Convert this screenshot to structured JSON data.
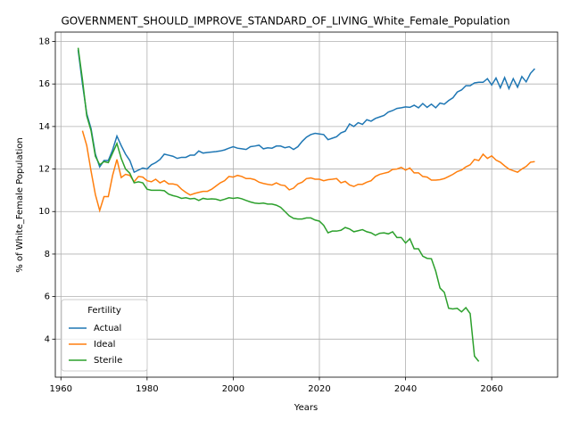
{
  "chart_data": {
    "type": "line",
    "title": "GOVERNMENT_SHOULD_IMPROVE_STANDARD_OF_LIVING_White_Female_Population",
    "xlabel": "Years",
    "ylabel": "% of White_Female Population",
    "legend_title": "Fertility",
    "legend": "lower left",
    "grid": true,
    "xlim": [
      1958.7,
      2075.3
    ],
    "xticks": [
      1960,
      1980,
      2000,
      2020,
      2040,
      2060
    ],
    "ylim": [
      2.21,
      18.44
    ],
    "yticks": [
      4,
      6,
      8,
      10,
      12,
      14,
      16,
      18
    ],
    "x": [
      1964,
      1965,
      1966,
      1967,
      1968,
      1969,
      1970,
      1971,
      1972,
      1973,
      1974,
      1975,
      1976,
      1977,
      1978,
      1979,
      1980,
      1981,
      1982,
      1983,
      1984,
      1985,
      1986,
      1987,
      1988,
      1989,
      1990,
      1991,
      1992,
      1993,
      1994,
      1995,
      1996,
      1997,
      1998,
      1999,
      2000,
      2001,
      2002,
      2003,
      2004,
      2005,
      2006,
      2007,
      2008,
      2009,
      2010,
      2011,
      2012,
      2013,
      2014,
      2015,
      2016,
      2017,
      2018,
      2019,
      2020,
      2021,
      2022,
      2023,
      2024,
      2025,
      2026,
      2027,
      2028,
      2029,
      2030,
      2031,
      2032,
      2033,
      2034,
      2035,
      2036,
      2037,
      2038,
      2039,
      2040,
      2041,
      2042,
      2043,
      2044,
      2045,
      2046,
      2047,
      2048,
      2049,
      2050,
      2051,
      2052,
      2053,
      2054,
      2055,
      2056,
      2057,
      2058,
      2059,
      2060,
      2061,
      2062,
      2063,
      2064,
      2065,
      2066,
      2067,
      2068,
      2069,
      2070
    ],
    "series": [
      {
        "name": "Actual",
        "color": "#1f77b4",
        "values": [
          17.6,
          16.0,
          14.6,
          13.9,
          12.7,
          12.1,
          12.4,
          12.4,
          12.9,
          13.55,
          13.1,
          12.7,
          12.4,
          11.85,
          11.95,
          12.05,
          12.0,
          12.2,
          12.3,
          12.45,
          12.7,
          12.65,
          12.6,
          12.5,
          12.55,
          12.55,
          12.65,
          12.65,
          12.85,
          12.75,
          12.78,
          12.8,
          12.82,
          12.85,
          12.9,
          12.98,
          13.05,
          12.98,
          12.95,
          12.92,
          13.05,
          13.08,
          13.12,
          12.95,
          13.0,
          12.98,
          13.08,
          13.08,
          13.0,
          13.05,
          12.92,
          13.05,
          13.3,
          13.5,
          13.62,
          13.68,
          13.65,
          13.62,
          13.38,
          13.45,
          13.52,
          13.7,
          13.78,
          14.12,
          14.0,
          14.18,
          14.1,
          14.32,
          14.25,
          14.38,
          14.45,
          14.52,
          14.68,
          14.75,
          14.85,
          14.88,
          14.92,
          14.9,
          15.0,
          14.88,
          15.08,
          14.9,
          15.05,
          14.88,
          15.1,
          15.05,
          15.22,
          15.35,
          15.62,
          15.72,
          15.92,
          15.92,
          16.05,
          16.08,
          16.08,
          16.25,
          15.95,
          16.28,
          15.82,
          16.3,
          15.78,
          16.25,
          15.85,
          16.35,
          16.1,
          16.5,
          16.72
        ]
      },
      {
        "name": "Ideal",
        "color": "#ff7f0e",
        "values": [
          null,
          13.8,
          13.1,
          11.9,
          10.8,
          10.05,
          10.7,
          10.7,
          11.7,
          12.45,
          11.6,
          11.75,
          11.7,
          11.4,
          11.65,
          11.62,
          11.45,
          11.4,
          11.52,
          11.35,
          11.45,
          11.3,
          11.3,
          11.25,
          11.05,
          10.9,
          10.78,
          10.85,
          10.9,
          10.95,
          10.95,
          11.05,
          11.2,
          11.35,
          11.45,
          11.65,
          11.62,
          11.7,
          11.65,
          11.55,
          11.55,
          11.5,
          11.38,
          11.32,
          11.28,
          11.25,
          11.35,
          11.25,
          11.22,
          11.02,
          11.1,
          11.3,
          11.38,
          11.55,
          11.58,
          11.52,
          11.52,
          11.45,
          11.5,
          11.52,
          11.55,
          11.35,
          11.42,
          11.25,
          11.18,
          11.28,
          11.28,
          11.38,
          11.45,
          11.65,
          11.75,
          11.8,
          11.85,
          11.98,
          12.0,
          12.08,
          11.95,
          12.05,
          11.82,
          11.82,
          11.65,
          11.62,
          11.48,
          11.48,
          11.5,
          11.55,
          11.65,
          11.75,
          11.88,
          11.95,
          12.1,
          12.2,
          12.45,
          12.4,
          12.7,
          12.5,
          12.62,
          12.42,
          12.32,
          12.15,
          12.0,
          11.92,
          11.85,
          12.0,
          12.12,
          12.32,
          12.35
        ]
      },
      {
        "name": "Sterile",
        "color": "#2ca02c",
        "values": [
          17.7,
          16.2,
          14.5,
          13.8,
          12.6,
          12.2,
          12.35,
          12.3,
          12.75,
          13.2,
          12.5,
          12.0,
          11.8,
          11.35,
          11.4,
          11.35,
          11.05,
          11.0,
          11.0,
          11.0,
          10.98,
          10.82,
          10.75,
          10.7,
          10.62,
          10.65,
          10.6,
          10.62,
          10.52,
          10.62,
          10.58,
          10.6,
          10.58,
          10.52,
          10.58,
          10.65,
          10.62,
          10.65,
          10.6,
          10.52,
          10.45,
          10.4,
          10.38,
          10.4,
          10.35,
          10.35,
          10.3,
          10.2,
          10.0,
          9.8,
          9.68,
          9.65,
          9.65,
          9.7,
          9.7,
          9.6,
          9.55,
          9.35,
          9.0,
          9.08,
          9.08,
          9.12,
          9.25,
          9.18,
          9.05,
          9.1,
          9.15,
          9.05,
          9.0,
          8.88,
          8.98,
          9.0,
          8.95,
          9.05,
          8.78,
          8.78,
          8.52,
          8.72,
          8.25,
          8.25,
          7.9,
          7.8,
          7.78,
          7.2,
          6.4,
          6.2,
          5.45,
          5.42,
          5.45,
          5.28,
          5.48,
          5.2,
          3.2,
          2.95,
          null,
          null,
          null,
          null,
          null,
          null,
          null,
          null,
          null,
          null,
          null,
          null,
          null
        ]
      }
    ]
  }
}
